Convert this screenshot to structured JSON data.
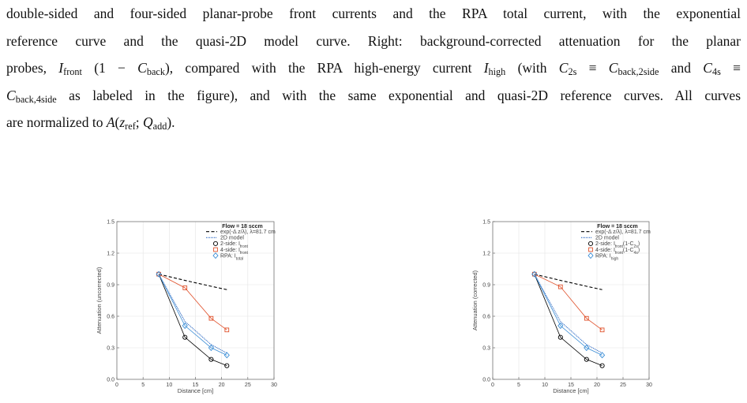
{
  "text": {
    "lines": [
      [
        "double-sided and four-sided planar-probe front currents and the RPA total current, with the exponential"
      ],
      [
        "reference curve and the quasi-2D model curve. Right: background-corrected attenuation for the planar"
      ],
      [
        "probes, ",
        {
          "i": "I"
        },
        {
          "sub": "front"
        },
        " (1 − ",
        {
          "i": "C"
        },
        {
          "sub": "back"
        },
        "), compared with the RPA high-energy current ",
        {
          "i": "I"
        },
        {
          "sub": "high"
        },
        " (with ",
        {
          "i": "C"
        },
        {
          "sub": "2s"
        },
        " ≡ ",
        {
          "i": "C"
        },
        {
          "sub": "back,2side"
        },
        " and ",
        {
          "i": "C"
        },
        {
          "sub": "4s"
        },
        " ≡"
      ],
      [
        {
          "i": "C"
        },
        {
          "sub": "back,4side"
        },
        " as labeled in the figure), and with the same exponential and quasi-2D reference curves. All curves"
      ],
      [
        "are normalized to ",
        {
          "i": "A"
        },
        "(",
        {
          "i": "z"
        },
        {
          "sub": "ref"
        },
        "; ",
        {
          "i": "Q"
        },
        {
          "sub": "add"
        },
        ")."
      ]
    ]
  },
  "chart_data": [
    {
      "type": "line",
      "xlabel": "Distance [cm]",
      "ylabel": "Attenuation (uncorrected)",
      "legend_title": "Flow = 18 sccm",
      "xlim": [
        0,
        30
      ],
      "ylim": [
        0,
        1.5
      ],
      "xticks": [
        0,
        5,
        10,
        15,
        20,
        25,
        30
      ],
      "yticks": [
        {
          "value": 0,
          "label": "0.0"
        },
        0.3,
        0.6,
        0.9,
        1.2,
        1.5
      ],
      "grid": true,
      "legend": "upper right",
      "x": [
        8,
        13,
        18,
        21
      ],
      "series": [
        {
          "name": [
            "exp(-Δ z/λ), λ=81.7 cm"
          ],
          "color": "#000000",
          "line": "dashed",
          "values": [
            1.0,
            0.941,
            0.885,
            0.853
          ]
        },
        {
          "name": [
            "2D model"
          ],
          "color": "#1f5fbf",
          "line": "dotted",
          "values": [
            1.0,
            0.55,
            0.33,
            0.25
          ]
        },
        {
          "name": [
            "2-side: I",
            {
              "sub": "front"
            }
          ],
          "color": "#000000",
          "line": "solid",
          "marker": "circle",
          "values": [
            1.0,
            0.4,
            0.19,
            0.13
          ]
        },
        {
          "name": [
            "4-side: I",
            {
              "sub": "front"
            }
          ],
          "color": "#e0502a",
          "line": "solid",
          "marker": "square",
          "values": [
            1.0,
            0.87,
            0.58,
            0.47
          ]
        },
        {
          "name": [
            "RPA: I",
            {
              "sub": "total"
            }
          ],
          "color": "#3b8ed6",
          "line": "solid",
          "marker": "diamond",
          "values": [
            1.0,
            0.51,
            0.3,
            0.23
          ]
        }
      ]
    },
    {
      "type": "line",
      "xlabel": "Distance [cm]",
      "ylabel": "Attenuation (corrected)",
      "legend_title": "Flow = 18 sccm",
      "xlim": [
        0,
        30
      ],
      "ylim": [
        0,
        1.5
      ],
      "xticks": [
        0,
        5,
        10,
        15,
        20,
        25,
        30
      ],
      "yticks": [
        {
          "value": 0,
          "label": "0.0"
        },
        0.3,
        0.6,
        0.9,
        1.2,
        1.5
      ],
      "grid": true,
      "legend": "upper right",
      "x": [
        8,
        13,
        18,
        21
      ],
      "series": [
        {
          "name": [
            "exp(-Δ z/λ), λ=81.7 cm"
          ],
          "color": "#000000",
          "line": "dashed",
          "values": [
            1.0,
            0.941,
            0.885,
            0.853
          ]
        },
        {
          "name": [
            "2D model"
          ],
          "color": "#1f5fbf",
          "line": "dotted",
          "values": [
            1.0,
            0.55,
            0.33,
            0.25
          ]
        },
        {
          "name": [
            "2-side: I",
            {
              "sub": "front"
            },
            "(1-C",
            {
              "sub": "2s"
            },
            ")"
          ],
          "color": "#000000",
          "line": "solid",
          "marker": "circle",
          "values": [
            1.0,
            0.4,
            0.19,
            0.13
          ]
        },
        {
          "name": [
            "4-side: I",
            {
              "sub": "front"
            },
            "(1-C",
            {
              "sub": "4s"
            },
            ")"
          ],
          "color": "#e0502a",
          "line": "solid",
          "marker": "square",
          "values": [
            1.0,
            0.88,
            0.58,
            0.47
          ]
        },
        {
          "name": [
            "RPA: I",
            {
              "sub": "high"
            }
          ],
          "color": "#3b8ed6",
          "line": "solid",
          "marker": "diamond",
          "values": [
            1.0,
            0.51,
            0.3,
            0.23
          ]
        }
      ]
    }
  ]
}
